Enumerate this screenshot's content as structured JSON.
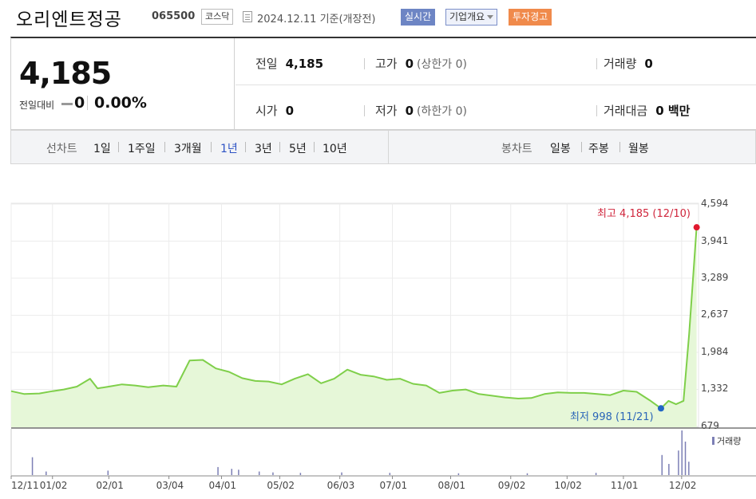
{
  "header": {
    "stock_name": "오리엔트정공",
    "stock_code": "065500",
    "market": "코스닥",
    "date_text": "2024.12.11  기준(개장전)",
    "realtime_label": "실시간",
    "company_overview_label": "기업개요",
    "warning_label": "투자경고"
  },
  "quote": {
    "price": "4,185",
    "change_label": "전일대비",
    "change_value": "0",
    "change_pct": "0.00%",
    "prev_close_label": "전일",
    "prev_close": "4,185",
    "high_label": "고가",
    "high": "0",
    "upper_limit": "(상한가 0)",
    "volume_label": "거래량",
    "volume": "0",
    "open_label": "시가",
    "open": "0",
    "low_label": "저가",
    "low": "0",
    "lower_limit": "(하한가 0)",
    "amount_label": "거래대금",
    "amount": "0 백만"
  },
  "period_bar": {
    "line_chart_label": "선차트",
    "line_options": [
      "1일",
      "1주일",
      "3개월",
      "1년",
      "3년",
      "5년",
      "10년"
    ],
    "selected": "1년",
    "candle_chart_label": "봉차트",
    "candle_options": [
      "일봉",
      "주봉",
      "월봉"
    ]
  },
  "colors": {
    "line": "#7fcf4a",
    "fill": "#e6f7d8",
    "high_marker": "#e0182e",
    "low_marker": "#2266c4",
    "volume_bar": "#7c7fb5",
    "selected_period": "#2e53c4"
  },
  "chart_data": {
    "type": "area",
    "y_ticks": [
      "4,594",
      "3,941",
      "3,289",
      "2,637",
      "1,984",
      "1,332",
      "679"
    ],
    "ylim": [
      679,
      4594
    ],
    "x_ticks": [
      "12/11",
      "01/02",
      "02/01",
      "03/04",
      "04/01",
      "05/02",
      "06/03",
      "07/01",
      "08/01",
      "09/02",
      "10/02",
      "11/01",
      "12/02"
    ],
    "high_label": "최고 4,185 (12/10)",
    "low_label": "최저 998 (11/21)",
    "volume_legend": "거래량",
    "series": [
      {
        "x": [
          "2023-12-11",
          "2023-12-18",
          "2023-12-26",
          "2024-01-02",
          "2024-01-08",
          "2024-01-15",
          "2024-01-22",
          "2024-01-26",
          "2024-02-01",
          "2024-02-08",
          "2024-02-15",
          "2024-02-22",
          "2024-03-01",
          "2024-03-08",
          "2024-03-15",
          "2024-03-22",
          "2024-03-29",
          "2024-04-05",
          "2024-04-12",
          "2024-04-19",
          "2024-04-26",
          "2024-05-03",
          "2024-05-10",
          "2024-05-17",
          "2024-05-24",
          "2024-05-31",
          "2024-06-07",
          "2024-06-14",
          "2024-06-21",
          "2024-06-28",
          "2024-07-05",
          "2024-07-12",
          "2024-07-19",
          "2024-07-26",
          "2024-08-02",
          "2024-08-09",
          "2024-08-16",
          "2024-08-23",
          "2024-08-30",
          "2024-09-06",
          "2024-09-13",
          "2024-09-20",
          "2024-09-27",
          "2024-10-04",
          "2024-10-11",
          "2024-10-18",
          "2024-10-25",
          "2024-11-01",
          "2024-11-08",
          "2024-11-15",
          "2024-11-21",
          "2024-11-25",
          "2024-11-29",
          "2024-12-03",
          "2024-12-06",
          "2024-12-10"
        ],
        "y": [
          1300,
          1250,
          1260,
          1300,
          1330,
          1380,
          1520,
          1350,
          1380,
          1420,
          1400,
          1370,
          1400,
          1380,
          1840,
          1850,
          1700,
          1640,
          1530,
          1480,
          1470,
          1420,
          1520,
          1600,
          1440,
          1520,
          1680,
          1590,
          1560,
          1500,
          1520,
          1430,
          1400,
          1270,
          1310,
          1330,
          1250,
          1220,
          1190,
          1170,
          1180,
          1250,
          1280,
          1270,
          1270,
          1250,
          1230,
          1310,
          1290,
          1140,
          998,
          1130,
          1070,
          1130,
          2300,
          4185
        ]
      }
    ]
  }
}
